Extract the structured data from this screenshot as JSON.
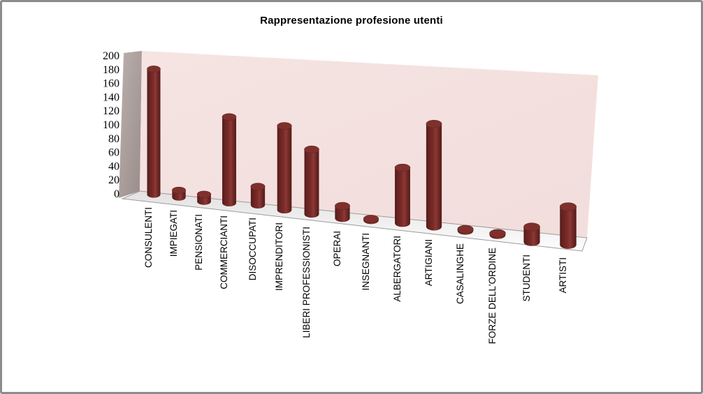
{
  "title": "Rappresentazione profesione utenti",
  "chart_data": {
    "type": "bar",
    "subtype": "3d-cylinder",
    "title": "Rappresentazione profesione utenti",
    "categories": [
      "CONSULENTI",
      "IMPIEGATI",
      "PENSIONATI",
      "COMMERCIANTI",
      "DISOCCUPATI",
      "IMPRENDITORI",
      "LIBERI PROFESSIONISTI",
      "OPERAI",
      "INSEGNANTI",
      "ALBERGATORI",
      "ARTIGIANI",
      "CASALINGHE",
      "FORZE DELL'ORDINE",
      "STUDENTI",
      "ARTISTI"
    ],
    "values": [
      180,
      10,
      10,
      118,
      25,
      112,
      85,
      16,
      2,
      70,
      128,
      2,
      2,
      18,
      45
    ],
    "xlabel": "",
    "ylabel": "",
    "ylim": [
      0,
      200
    ],
    "ytick_step": 20,
    "yticks": [
      0,
      20,
      40,
      60,
      80,
      100,
      120,
      140,
      160,
      180,
      200
    ],
    "grid": false,
    "legend": "none",
    "colors": {
      "bar_body": "#7B2B28",
      "bar_edge_dark": "#541C1B",
      "bar_highlight": "#8A3936",
      "bar_cap": "#7E302D",
      "back_wall": "#F2DEDC",
      "side_wall": "#AB9E9B",
      "floor": "#F5F4F4",
      "frame_border": "#8C8C8C",
      "axis_line": "#9B9B9B",
      "text": "#000000"
    }
  }
}
